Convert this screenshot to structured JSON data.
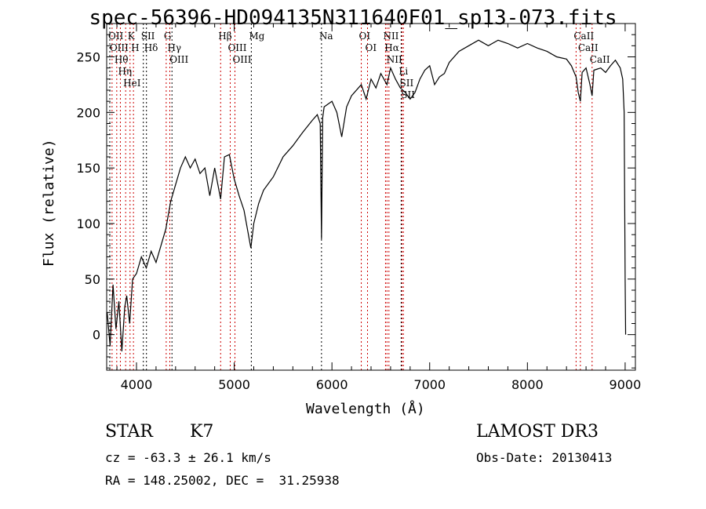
{
  "chart_data": {
    "type": "line",
    "title": "spec-56396-HD094135N311640F01_sp13-073.fits",
    "xlabel": "Wavelength (Å)",
    "ylabel": "Flux (relative)",
    "xlim": [
      3695,
      9105
    ],
    "ylim": [
      -32,
      280
    ],
    "xticks": [
      4000,
      5000,
      6000,
      7000,
      8000,
      9000
    ],
    "xtick_labels": [
      "4000",
      "5000",
      "6000",
      "7000",
      "8000",
      "9000"
    ],
    "yticks": [
      0,
      50,
      100,
      150,
      200,
      250
    ],
    "ytick_labels": [
      "0",
      "50",
      "100",
      "150",
      "200",
      "250"
    ],
    "grid": false,
    "series": [
      {
        "name": "spectrum",
        "x": [
          3700,
          3730,
          3760,
          3790,
          3820,
          3850,
          3880,
          3900,
          3930,
          3960,
          4000,
          4050,
          4100,
          4150,
          4200,
          4250,
          4300,
          4350,
          4400,
          4450,
          4500,
          4550,
          4600,
          4650,
          4700,
          4750,
          4800,
          4861,
          4900,
          4950,
          5000,
          5050,
          5100,
          5170,
          5200,
          5250,
          5300,
          5400,
          5500,
          5600,
          5700,
          5800,
          5850,
          5880,
          5893,
          5905,
          5920,
          6000,
          6050,
          6100,
          6150,
          6200,
          6300,
          6350,
          6400,
          6450,
          6500,
          6563,
          6600,
          6650,
          6700,
          6750,
          6800,
          6850,
          6900,
          6950,
          7000,
          7050,
          7100,
          7150,
          7200,
          7300,
          7400,
          7500,
          7600,
          7700,
          7800,
          7900,
          8000,
          8100,
          8200,
          8300,
          8400,
          8450,
          8498,
          8520,
          8542,
          8560,
          8600,
          8640,
          8662,
          8680,
          8750,
          8800,
          8850,
          8900,
          8950,
          8975,
          8990,
          9000,
          9005
        ],
        "y": [
          20,
          -10,
          45,
          5,
          30,
          -15,
          25,
          35,
          10,
          50,
          55,
          70,
          60,
          75,
          65,
          80,
          95,
          120,
          135,
          150,
          160,
          150,
          158,
          145,
          150,
          125,
          150,
          122,
          160,
          162,
          140,
          125,
          112,
          78,
          100,
          118,
          130,
          142,
          160,
          170,
          182,
          193,
          198,
          190,
          86,
          195,
          205,
          210,
          200,
          178,
          205,
          215,
          225,
          212,
          230,
          222,
          235,
          225,
          240,
          230,
          222,
          218,
          212,
          218,
          230,
          238,
          242,
          225,
          232,
          235,
          245,
          255,
          260,
          265,
          260,
          265,
          262,
          258,
          262,
          258,
          255,
          250,
          248,
          242,
          232,
          218,
          210,
          236,
          240,
          225,
          215,
          238,
          240,
          236,
          242,
          247,
          240,
          230,
          200,
          50,
          0
        ]
      }
    ],
    "line_markers": [
      {
        "wl": 3727,
        "label": "OII",
        "row": 3,
        "color": "#000000"
      },
      {
        "wl": 3750,
        "label": "OIII",
        "row": 2,
        "color": "#cc0000"
      },
      {
        "wl": 3798,
        "label": "Hθ",
        "row": 1,
        "color": "#cc0000"
      },
      {
        "wl": 3835,
        "label": "Hη",
        "row": 3,
        "color": "#cc0000"
      },
      {
        "wl": 3889,
        "label": "HeI",
        "row": 2,
        "color": "#cc0000"
      },
      {
        "wl": 3934,
        "label": "K",
        "row": 1,
        "color": "#cc0000"
      },
      {
        "wl": 3969,
        "label": "H",
        "row": 3,
        "color": "#cc0000"
      },
      {
        "wl": 4070,
        "label": "SII",
        "row": 2,
        "color": "#000000"
      },
      {
        "wl": 4102,
        "label": "Hδ",
        "row": 1,
        "color": "#000000"
      },
      {
        "wl": 4304,
        "label": "G",
        "row": 3,
        "color": "#cc0000"
      },
      {
        "wl": 4341,
        "label": "Hγ",
        "row": 2,
        "color": "#cc0000"
      },
      {
        "wl": 4363,
        "label": "OIII",
        "row": 1,
        "color": "#000000"
      },
      {
        "wl": 4861,
        "label": "Hβ",
        "row": 3,
        "color": "#cc0000"
      },
      {
        "wl": 4959,
        "label": "OIII",
        "row": 2,
        "color": "#cc0000"
      },
      {
        "wl": 5007,
        "label": "OIII",
        "row": 1,
        "color": "#cc0000"
      },
      {
        "wl": 5175,
        "label": "Mg",
        "row": 3,
        "color": "#000000"
      },
      {
        "wl": 5893,
        "label": "Na",
        "row": 2,
        "color": "#000000"
      },
      {
        "wl": 6300,
        "label": "OI",
        "row": 1,
        "color": "#cc0000"
      },
      {
        "wl": 6364,
        "label": "OI",
        "row": 3,
        "color": "#cc0000"
      },
      {
        "wl": 6548,
        "label": "NII",
        "row": 3,
        "color": "#cc0000"
      },
      {
        "wl": 6563,
        "label": "Hα",
        "row": 1,
        "color": "#cc0000"
      },
      {
        "wl": 6583,
        "label": "NII",
        "row": 2,
        "color": "#cc0000"
      },
      {
        "wl": 6708,
        "label": "Li",
        "row": 2,
        "color": "#000000"
      },
      {
        "wl": 6717,
        "label": "SII",
        "row": 1,
        "color": "#cc0000"
      },
      {
        "wl": 6731,
        "label": "SII",
        "row": 3,
        "color": "#cc0000"
      },
      {
        "wl": 8498,
        "label": "CaII",
        "row": 2,
        "color": "#cc0000"
      },
      {
        "wl": 8542,
        "label": "CaII",
        "row": 1,
        "color": "#cc0000"
      },
      {
        "wl": 8662,
        "label": "CaII",
        "row": 3,
        "color": "#cc0000"
      }
    ]
  },
  "info": {
    "class": "STAR",
    "subclass": "K7",
    "survey": "LAMOST DR3",
    "cz": "cz = -63.3 ± 26.1 km/s",
    "obs_date": "Obs-Date: 20130413",
    "radec": "RA = 148.25002, DEC =  31.25938"
  }
}
